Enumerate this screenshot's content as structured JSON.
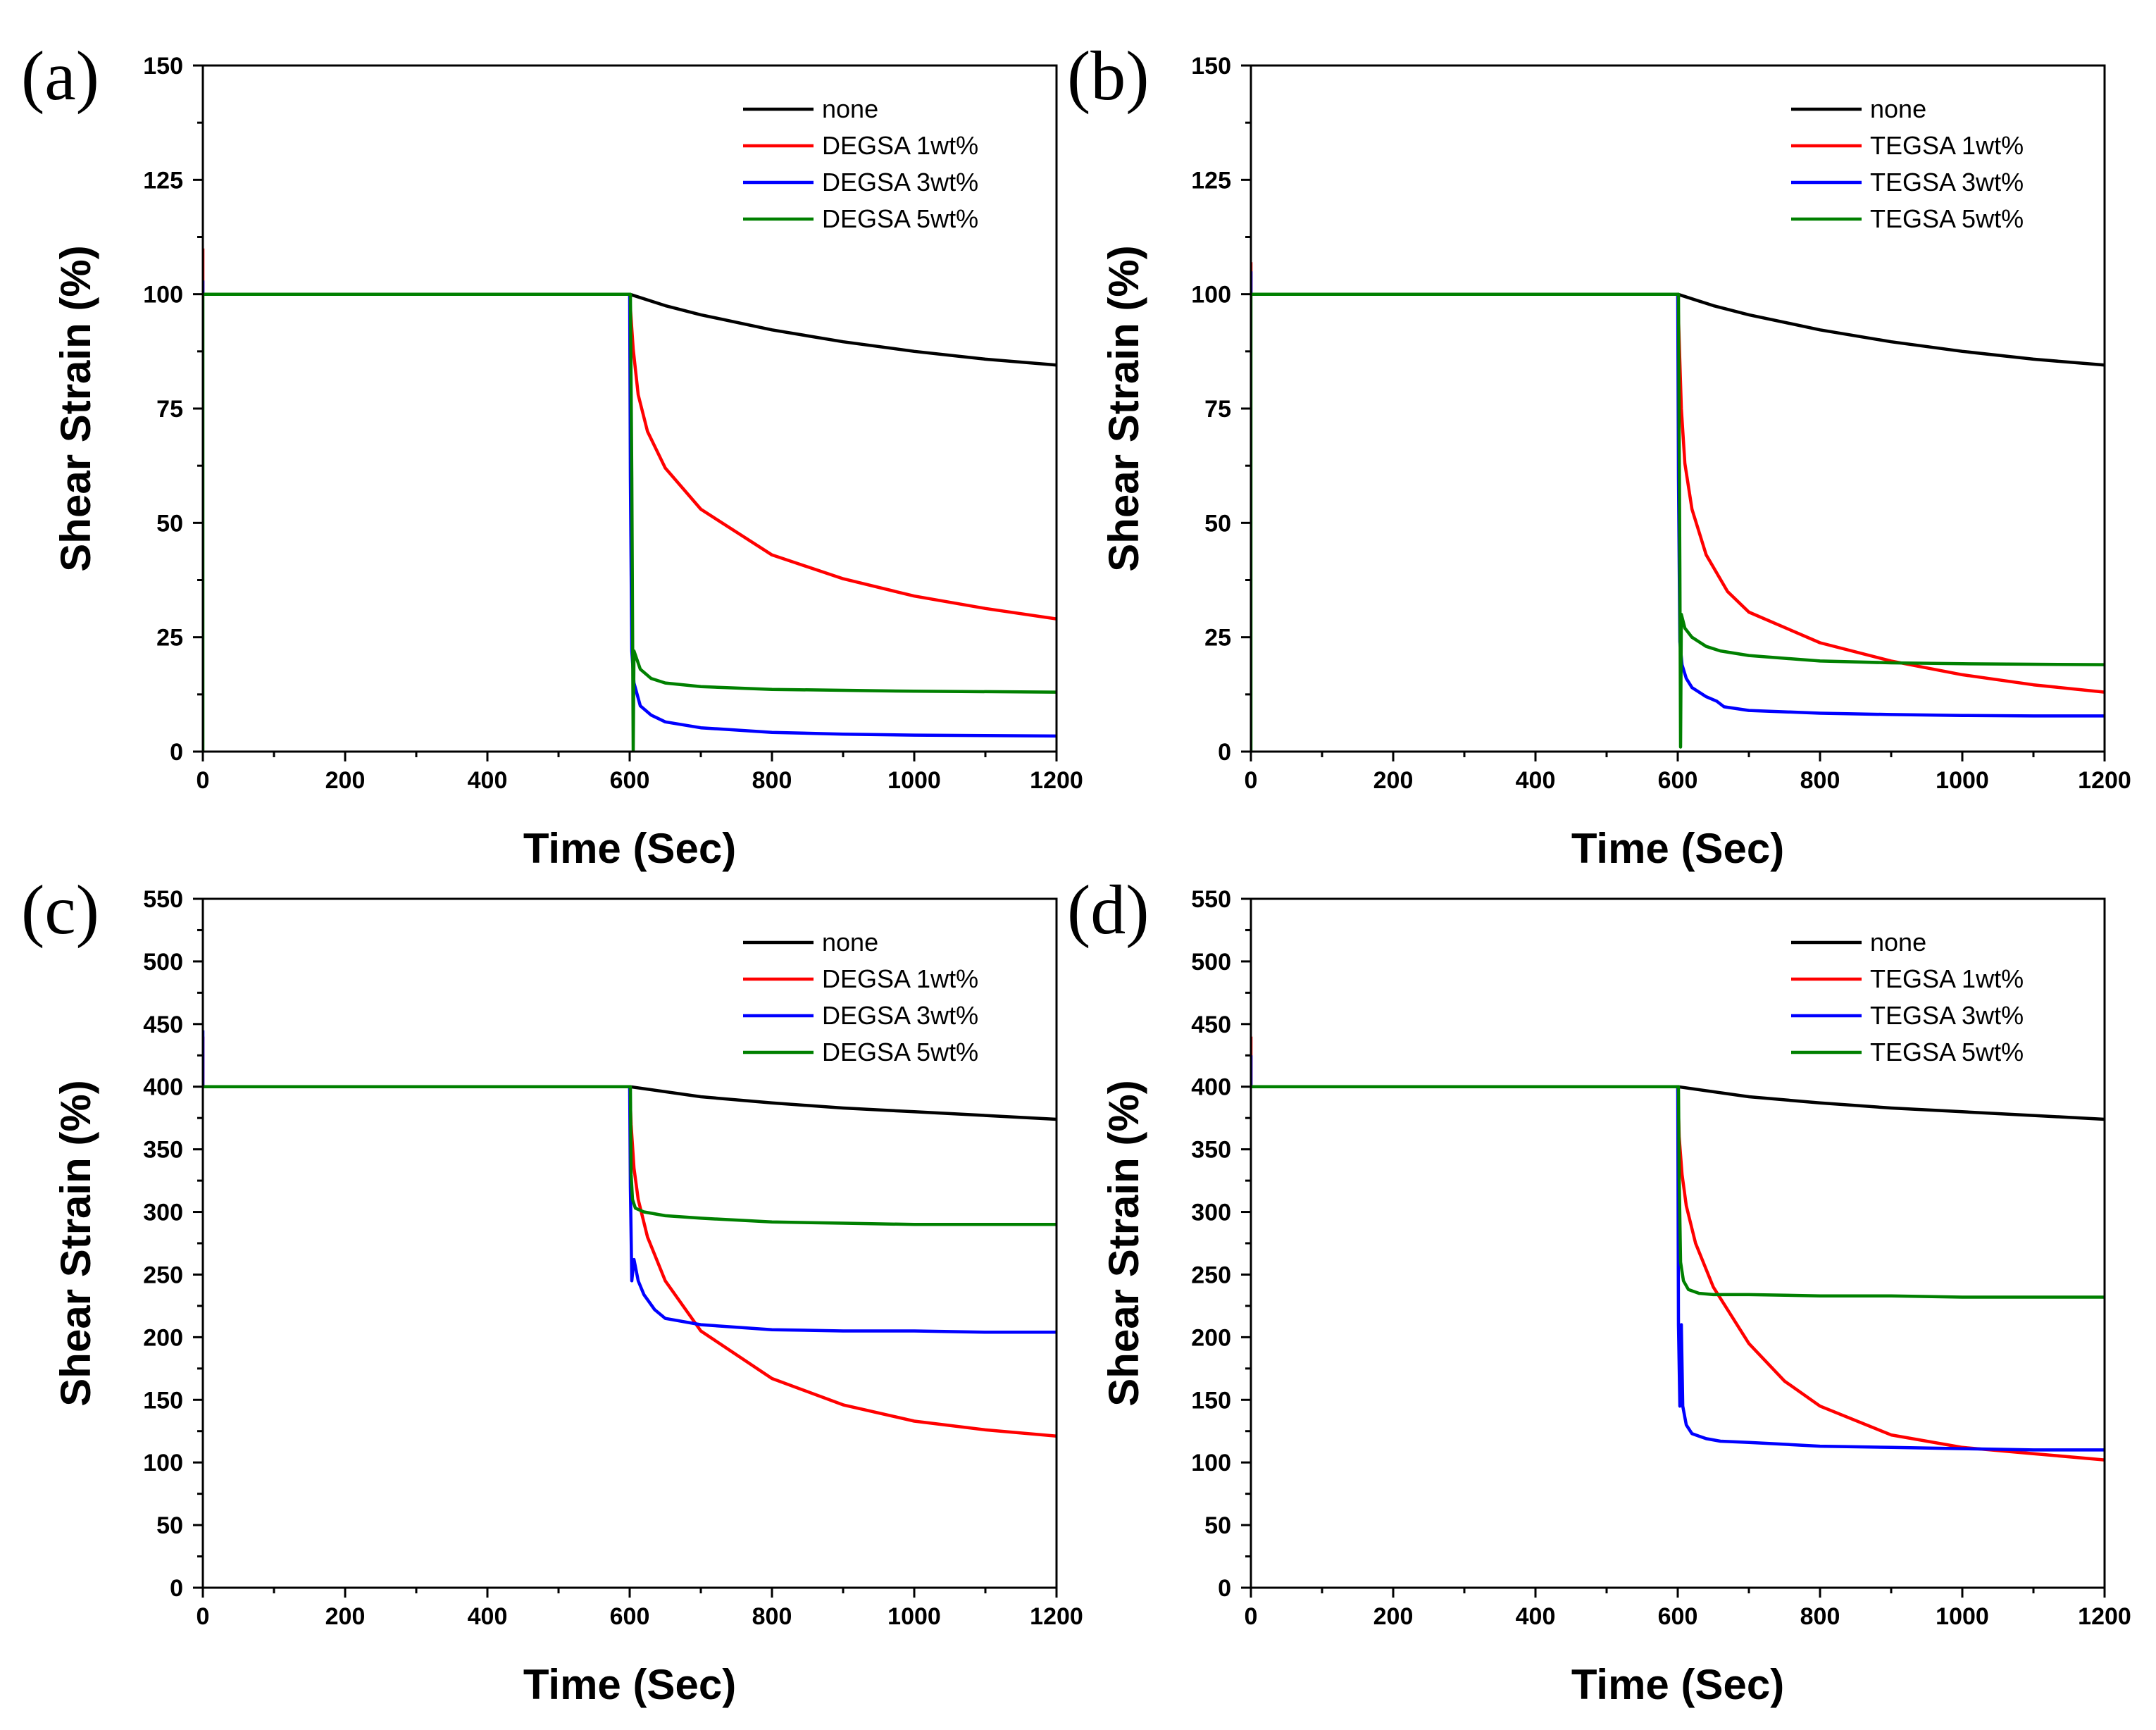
{
  "figure": {
    "panel_count": 4
  },
  "chart_data": [
    {
      "type": "line",
      "panel_label": "(a)",
      "xlabel": "Time (Sec)",
      "ylabel": "Shear Strain (%)",
      "xlim": [
        0,
        1200
      ],
      "ylim": [
        0,
        150
      ],
      "xticks": [
        "0",
        "200",
        "400",
        "600",
        "800",
        "1000",
        "1200"
      ],
      "yticks": [
        "0",
        "25",
        "50",
        "75",
        "100",
        "125",
        "150"
      ],
      "legend_position": "top-right",
      "series": [
        {
          "name": "none",
          "color": "#000000",
          "x": [
            0,
            0,
            600,
            650,
            700,
            800,
            900,
            1000,
            1100,
            1200
          ],
          "y": [
            100,
            100,
            100,
            97.5,
            95.5,
            92.2,
            89.6,
            87.5,
            85.8,
            84.5
          ]
        },
        {
          "name": "DEGSA 1wt%",
          "color": "#ff0000",
          "x": [
            0,
            0,
            600,
            601,
            605,
            612,
            625,
            650,
            700,
            800,
            900,
            1000,
            1100,
            1200
          ],
          "y": [
            110,
            100,
            100,
            97,
            88,
            78,
            70,
            62,
            53,
            43,
            37.8,
            34,
            31.3,
            29
          ]
        },
        {
          "name": "DEGSA 3wt%",
          "color": "#0000ff",
          "x": [
            0,
            0,
            600,
            601,
            603,
            606,
            615,
            630,
            650,
            700,
            800,
            900,
            1000,
            1100,
            1200
          ],
          "y": [
            103,
            100,
            100,
            60,
            22,
            15,
            10,
            8,
            6.5,
            5.2,
            4.2,
            3.8,
            3.6,
            3.5,
            3.4
          ]
        },
        {
          "name": "DEGSA 5wt%",
          "color": "#008000",
          "x": [
            0,
            0,
            600,
            601,
            603,
            605,
            606,
            615,
            630,
            650,
            700,
            800,
            1000,
            1200
          ],
          "y": [
            0,
            100,
            100,
            100,
            60,
            0,
            22,
            18,
            16,
            15,
            14.2,
            13.6,
            13.2,
            13
          ]
        }
      ]
    },
    {
      "type": "line",
      "panel_label": "(b)",
      "xlabel": "Time (Sec)",
      "ylabel": "Shear Strain (%)",
      "xlim": [
        0,
        1200
      ],
      "ylim": [
        0,
        150
      ],
      "xticks": [
        "0",
        "200",
        "400",
        "600",
        "800",
        "1000",
        "1200"
      ],
      "yticks": [
        "0",
        "25",
        "50",
        "75",
        "100",
        "125",
        "150"
      ],
      "legend_position": "top-right",
      "series": [
        {
          "name": "none",
          "color": "#000000",
          "x": [
            0,
            0,
            600,
            650,
            700,
            800,
            900,
            1000,
            1100,
            1200
          ],
          "y": [
            100,
            100,
            100,
            97.5,
            95.5,
            92.2,
            89.6,
            87.5,
            85.8,
            84.5
          ]
        },
        {
          "name": "TEGSA 1wt%",
          "color": "#ff0000",
          "x": [
            0,
            0,
            600,
            602,
            605,
            610,
            620,
            640,
            670,
            700,
            800,
            900,
            1000,
            1100,
            1200
          ],
          "y": [
            107,
            100,
            100,
            90,
            75,
            63,
            53,
            43,
            35,
            30.5,
            23.8,
            19.8,
            16.8,
            14.6,
            13
          ]
        },
        {
          "name": "TEGSA 3wt%",
          "color": "#0000ff",
          "x": [
            0,
            0,
            600,
            601,
            603,
            606,
            612,
            620,
            640,
            655,
            665,
            700,
            800,
            900,
            1000,
            1100,
            1200
          ],
          "y": [
            105,
            100,
            100,
            60,
            24,
            19,
            16,
            14,
            12,
            11,
            9.8,
            9,
            8.4,
            8.1,
            7.9,
            7.8,
            7.8
          ]
        },
        {
          "name": "TEGSA 5wt%",
          "color": "#008000",
          "x": [
            0,
            0,
            600,
            601,
            603,
            604,
            605,
            610,
            620,
            640,
            660,
            700,
            800,
            900,
            1000,
            1100,
            1200
          ],
          "y": [
            0,
            100,
            100,
            100,
            40,
            1,
            30,
            27,
            25,
            23,
            22,
            21,
            19.8,
            19.4,
            19.2,
            19.1,
            19
          ]
        }
      ]
    },
    {
      "type": "line",
      "panel_label": "(c)",
      "xlabel": "Time (Sec)",
      "ylabel": "Shear Strain (%)",
      "xlim": [
        0,
        1200
      ],
      "ylim": [
        0,
        550
      ],
      "xticks": [
        "0",
        "200",
        "400",
        "600",
        "800",
        "1000",
        "1200"
      ],
      "yticks": [
        "0",
        "50",
        "100",
        "150",
        "200",
        "250",
        "300",
        "350",
        "400",
        "450",
        "500",
        "550"
      ],
      "legend_position": "top-right",
      "series": [
        {
          "name": "none",
          "color": "#000000",
          "x": [
            0,
            0,
            600,
            700,
            800,
            900,
            1000,
            1100,
            1200
          ],
          "y": [
            400,
            400,
            400,
            392,
            387,
            383,
            380,
            377,
            374
          ]
        },
        {
          "name": "DEGSA 1wt%",
          "color": "#ff0000",
          "x": [
            0,
            0,
            600,
            602,
            606,
            612,
            625,
            650,
            700,
            800,
            900,
            1000,
            1100,
            1200
          ],
          "y": [
            440,
            400,
            400,
            370,
            335,
            310,
            280,
            245,
            205,
            167,
            146,
            133,
            126,
            121
          ]
        },
        {
          "name": "DEGSA 3wt%",
          "color": "#0000ff",
          "x": [
            0,
            0,
            600,
            601,
            603,
            606,
            612,
            620,
            635,
            650,
            700,
            800,
            900,
            1000,
            1100,
            1200
          ],
          "y": [
            445,
            400,
            400,
            320,
            245,
            262,
            245,
            234,
            222,
            215,
            210,
            206,
            205,
            205,
            204,
            204
          ]
        },
        {
          "name": "DEGSA 5wt%",
          "color": "#008000",
          "x": [
            0,
            0,
            600,
            601,
            602,
            604,
            608,
            620,
            650,
            700,
            800,
            900,
            1000,
            1100,
            1200
          ],
          "y": [
            400,
            400,
            400,
            400,
            330,
            310,
            303,
            300,
            297,
            295,
            292,
            291,
            290,
            290,
            290
          ]
        }
      ]
    },
    {
      "type": "line",
      "panel_label": "(d)",
      "xlabel": "Time (Sec)",
      "ylabel": "Shear Strain (%)",
      "xlim": [
        0,
        1200
      ],
      "ylim": [
        0,
        550
      ],
      "xticks": [
        "0",
        "200",
        "400",
        "600",
        "800",
        "1000",
        "1200"
      ],
      "yticks": [
        "0",
        "50",
        "100",
        "150",
        "200",
        "250",
        "300",
        "350",
        "400",
        "450",
        "500",
        "550"
      ],
      "legend_position": "top-right",
      "series": [
        {
          "name": "none",
          "color": "#000000",
          "x": [
            0,
            0,
            600,
            700,
            800,
            900,
            1000,
            1100,
            1200
          ],
          "y": [
            400,
            400,
            400,
            392,
            387,
            383,
            380,
            377,
            374
          ]
        },
        {
          "name": "TEGSA 1wt%",
          "color": "#ff0000",
          "x": [
            0,
            0,
            600,
            602,
            606,
            612,
            625,
            650,
            700,
            750,
            800,
            900,
            1000,
            1100,
            1200
          ],
          "y": [
            440,
            400,
            400,
            360,
            330,
            305,
            275,
            240,
            195,
            165,
            145,
            122,
            112,
            107,
            102
          ]
        },
        {
          "name": "TEGSA 3wt%",
          "color": "#0000ff",
          "x": [
            0,
            0,
            600,
            601,
            603,
            605,
            607,
            612,
            620,
            640,
            660,
            700,
            800,
            900,
            1000,
            1100,
            1200
          ],
          "y": [
            425,
            400,
            400,
            210,
            145,
            210,
            145,
            130,
            123,
            119,
            117,
            116,
            113,
            112,
            111,
            110,
            110
          ]
        },
        {
          "name": "TEGSA 5wt%",
          "color": "#008000",
          "x": [
            0,
            0,
            600,
            601,
            602,
            604,
            608,
            615,
            630,
            650,
            700,
            800,
            900,
            1000,
            1100,
            1200
          ],
          "y": [
            400,
            400,
            400,
            400,
            330,
            260,
            245,
            238,
            235,
            234,
            234,
            233,
            233,
            232,
            232,
            232
          ]
        }
      ]
    }
  ]
}
